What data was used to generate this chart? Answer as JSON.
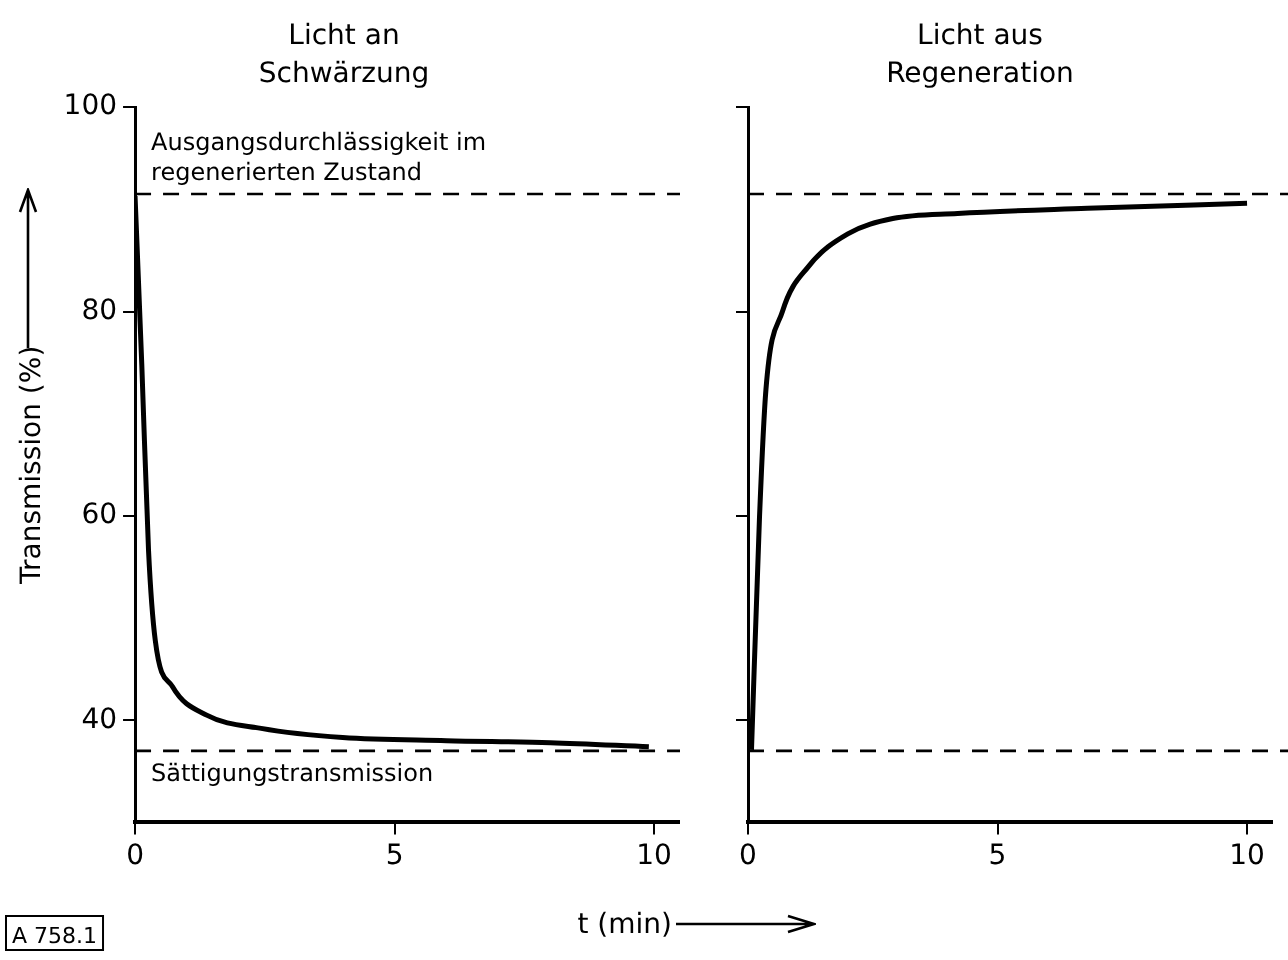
{
  "chart_data": [
    {
      "type": "line",
      "title": "Licht an",
      "subtitle": "Schwärzung",
      "xlabel": "t (min)",
      "ylabel": "Transmission (%)",
      "xlim": [
        0,
        10.5
      ],
      "xticks": [
        0,
        5,
        10
      ],
      "ylim": [
        30,
        100
      ],
      "yticks": [
        40,
        60,
        80,
        100
      ],
      "grid": false,
      "legend": false,
      "marker": "none",
      "line_style": "solid",
      "series": [
        {
          "color": "#000000",
          "x": [
            0,
            0.13,
            0.26,
            0.39,
            0.72,
            1.38,
            2.43,
            4,
            6,
            8,
            9.9
          ],
          "values": [
            91.3,
            74.8,
            56.6,
            47.8,
            43.3,
            40.5,
            39.2,
            38.3,
            38,
            37.8,
            37.4
          ]
        }
      ],
      "ref_lines": [
        {
          "axis": "y",
          "value": 91.5,
          "label": "Ausgangsdurchlässigkeit im regenerierten Zustand",
          "line_style": "dashed",
          "color": "#000000"
        },
        {
          "axis": "y",
          "value": 37,
          "label": "Sättigungstransmission",
          "line_style": "dashed",
          "color": "#000000"
        }
      ],
      "annotations": [
        "A 758.1"
      ]
    },
    {
      "type": "line",
      "title": "Licht aus",
      "subtitle": "Regeneration",
      "xlim": [
        0,
        10.5
      ],
      "xticks": [
        0,
        5,
        10
      ],
      "ylim": [
        30,
        100
      ],
      "yticks": [
        40,
        60,
        80,
        100
      ],
      "tick_labels": "x",
      "grid": false,
      "legend": false,
      "marker": "none",
      "line_style": "solid",
      "series": [
        {
          "color": "#000000",
          "x": [
            0.07,
            0.23,
            0.36,
            0.69,
            1.21,
            2,
            2.9,
            4.2,
            6.8,
            10
          ],
          "values": [
            37.1,
            59.8,
            72.4,
            80,
            84.4,
            87.6,
            89.1,
            89.6,
            90.1,
            90.6
          ]
        }
      ],
      "ref_lines": [
        {
          "axis": "y",
          "value": 91.5,
          "line_style": "dashed",
          "color": "#000000"
        },
        {
          "axis": "y",
          "value": 37,
          "line_style": "dashed",
          "color": "#000000"
        }
      ]
    }
  ]
}
